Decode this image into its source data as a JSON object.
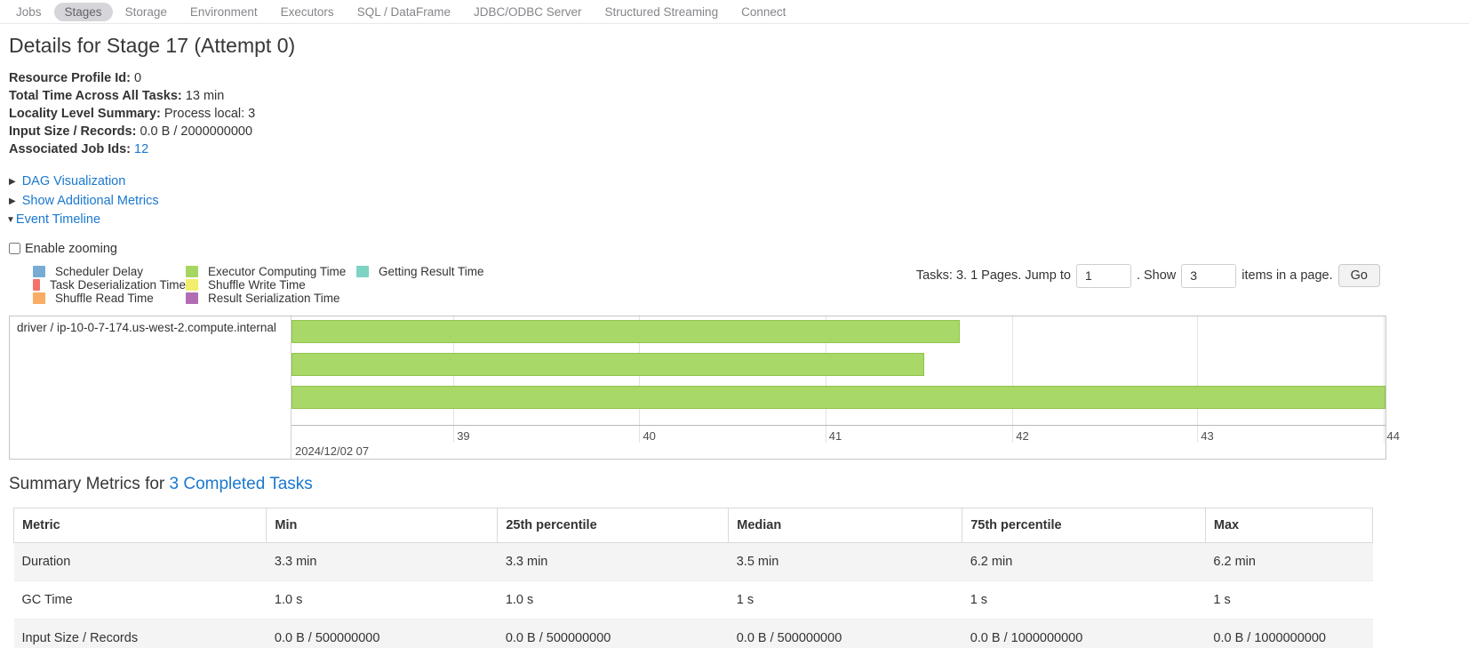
{
  "nav": {
    "items": [
      {
        "label": "Jobs"
      },
      {
        "label": "Stages"
      },
      {
        "label": "Storage"
      },
      {
        "label": "Environment"
      },
      {
        "label": "Executors"
      },
      {
        "label": "SQL / DataFrame"
      },
      {
        "label": "JDBC/ODBC Server"
      },
      {
        "label": "Structured Streaming"
      },
      {
        "label": "Connect"
      }
    ],
    "active": "Stages"
  },
  "page": {
    "title": "Details for Stage 17 (Attempt 0)"
  },
  "props": [
    {
      "label": "Resource Profile Id:",
      "value": "0"
    },
    {
      "label": "Total Time Across All Tasks:",
      "value": "13 min"
    },
    {
      "label": "Locality Level Summary:",
      "value": "Process local: 3"
    },
    {
      "label": "Input Size / Records:",
      "value": "0.0 B / 2000000000"
    },
    {
      "label": "Associated Job Ids:",
      "value": "12"
    }
  ],
  "toggles": {
    "collapsed_icon": "▶",
    "expanded_icon": "▼",
    "dag_label": "DAG Visualization",
    "metrics_label": "Show Additional Metrics",
    "timeline_label": "Event Timeline",
    "enable_zooming_label": "Enable zooming",
    "zooming_checked": false
  },
  "pagination": {
    "summary": "Tasks: 3. 1 Pages. Jump to",
    "jump_value": "1",
    "between": ". Show",
    "show_value": "3",
    "suffix": "items in a page.",
    "go_label": "Go"
  },
  "legend": {
    "items": [
      {
        "label": "Scheduler Delay",
        "color": "#78ACD4"
      },
      {
        "label": "Task Deserialization Time",
        "color": "#F3716B"
      },
      {
        "label": "Shuffle Read Time",
        "color": "#F9AC63"
      },
      {
        "label": "Executor Computing Time",
        "color": "#A5D662"
      },
      {
        "label": "Shuffle Write Time",
        "color": "#F3ED6D"
      },
      {
        "label": "Result Serialization Time",
        "color": "#B06CB4"
      },
      {
        "label": "Getting Result Time",
        "color": "#7FD3C2"
      }
    ]
  },
  "chart_data": {
    "type": "timeline",
    "group_label": "driver / ip-10-0-7-174.us-west-2.compute.internal",
    "axis_major_label": "2024/12/02 07",
    "axis_minor_ticks": [
      {
        "label": "39",
        "pos": 0.148
      },
      {
        "label": "40",
        "pos": 0.318
      },
      {
        "label": "41",
        "pos": 0.488
      },
      {
        "label": "42",
        "pos": 0.659
      },
      {
        "label": "43",
        "pos": 0.828
      },
      {
        "label": "44",
        "pos": 0.998
      }
    ],
    "bars": [
      {
        "name": "task-1",
        "start": 0,
        "end": 0.611,
        "color": "#A8D868",
        "border_color": "#93C24B",
        "category": "Executor Computing Time"
      },
      {
        "name": "task-2",
        "start": 0,
        "end": 0.578,
        "color": "#A8D868",
        "border_color": "#93C24B",
        "category": "Executor Computing Time"
      },
      {
        "name": "task-3",
        "start": 0,
        "end": 1.0,
        "color": "#A8D868",
        "border_color": "#93C24B",
        "category": "Executor Computing Time"
      }
    ]
  },
  "summary": {
    "heading_prefix": "Summary Metrics for ",
    "heading_link": "3 Completed Tasks",
    "table": {
      "columns": [
        "Metric",
        "Min",
        "25th percentile",
        "Median",
        "75th percentile",
        "Max"
      ],
      "rows": [
        {
          "cells": [
            "Duration",
            "3.3 min",
            "3.3 min",
            "3.5 min",
            "6.2 min",
            "6.2 min"
          ]
        },
        {
          "cells": [
            "GC Time",
            "1.0 s",
            "1.0 s",
            "1 s",
            "1 s",
            "1 s"
          ]
        },
        {
          "cells": [
            "Input Size / Records",
            "0.0 B / 500000000",
            "0.0 B / 500000000",
            "0.0 B / 500000000",
            "0.0 B / 1000000000",
            "0.0 B / 1000000000"
          ]
        }
      ]
    }
  }
}
